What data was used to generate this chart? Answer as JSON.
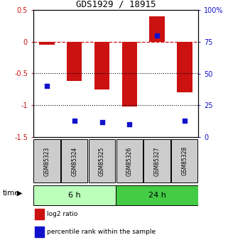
{
  "title": "GDS1929 / 18915",
  "samples": [
    "GSM85323",
    "GSM85324",
    "GSM85325",
    "GSM85326",
    "GSM85327",
    "GSM85328"
  ],
  "log2_ratio": [
    -0.05,
    -0.62,
    -0.75,
    -1.02,
    0.4,
    -0.8
  ],
  "percentile": [
    40,
    13,
    12,
    10,
    80,
    13
  ],
  "ylim_left": [
    -1.5,
    0.5
  ],
  "ylim_right": [
    0,
    100
  ],
  "yticks_left": [
    0.5,
    0,
    -0.5,
    -1.0,
    -1.5
  ],
  "ytick_labels_left": [
    "0.5",
    "0",
    "-0.5",
    "-1",
    "-1.5"
  ],
  "yticks_right": [
    100,
    75,
    50,
    25,
    0
  ],
  "ytick_labels_right": [
    "100%",
    "75",
    "50",
    "25",
    "0"
  ],
  "bar_color": "#cc1111",
  "dot_color": "#1111cc",
  "hline_color": "#cc1111",
  "dotted_line_color": "#000000",
  "time_groups": [
    {
      "label": "6 h",
      "indices": [
        0,
        1,
        2
      ],
      "color": "#bbffbb"
    },
    {
      "label": "24 h",
      "indices": [
        3,
        4,
        5
      ],
      "color": "#44cc44"
    }
  ],
  "legend_items": [
    {
      "color": "#cc1111",
      "label": "log2 ratio"
    },
    {
      "color": "#1111cc",
      "label": "percentile rank within the sample"
    }
  ],
  "time_label": "time",
  "bar_width": 0.55,
  "left_axis_color": "#cc1111",
  "right_axis_color": "#1111cc",
  "background_color": "#ffffff",
  "sample_box_color": "#cccccc",
  "sample_box_edge": "#000000"
}
